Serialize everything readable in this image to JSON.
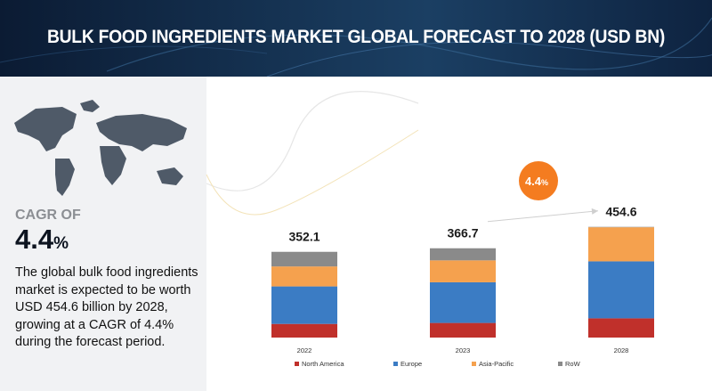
{
  "header": {
    "title": "BULK FOOD INGREDIENTS MARKET GLOBAL FORECAST TO 2028 (USD BN)"
  },
  "sidebar": {
    "cagr_label": "CAGR OF",
    "cagr_value": "4.4",
    "cagr_unit": "%",
    "summary": "The global bulk food ingredients market is expected to be worth USD 454.6 billion by 2028, growing at a CAGR of 4.4% during the forecast period.",
    "map_icon": "world-map-icon"
  },
  "badge": {
    "value": "4.4",
    "unit": "%",
    "color": "#f47c20"
  },
  "chart_data": {
    "type": "bar",
    "stacked": true,
    "categories": [
      "2022",
      "2023",
      "2028"
    ],
    "totals": [
      "352.1",
      "366.7",
      "454.6"
    ],
    "series": [
      {
        "name": "North America",
        "color": "#c0302b",
        "values": [
          56,
          60,
          79
        ]
      },
      {
        "name": "Europe",
        "color": "#3b7cc4",
        "values": [
          154,
          167,
          234
        ]
      },
      {
        "name": "Asia-Pacific",
        "color": "#f5a14e",
        "values": [
          82,
          90,
          140
        ]
      },
      {
        "name": "RoW",
        "color": "#8a8a8a",
        "values": [
          60.1,
          49.7,
          1.6
        ]
      }
    ],
    "series_fix_note": "",
    "legend_position": "bottom",
    "grid": false,
    "ylim": [
      0,
      520
    ]
  }
}
